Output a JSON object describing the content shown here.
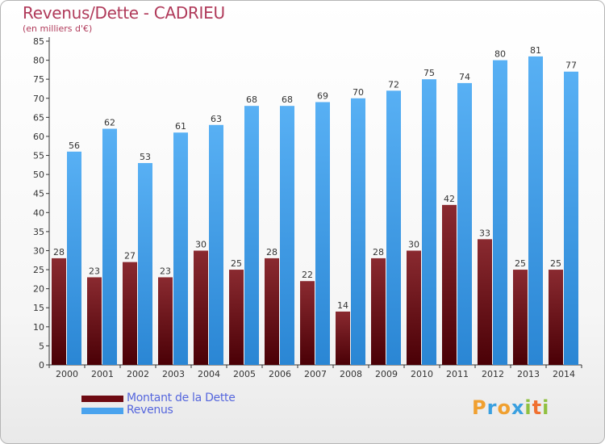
{
  "header": {
    "title": "Revenus/Dette - CADRIEU",
    "subtitle": "(en milliers d'€)"
  },
  "legend": {
    "items": [
      {
        "label": "Montant de la Dette",
        "color": "#6e0a12"
      },
      {
        "label": "Revenus",
        "color": "#4aa3ee"
      }
    ]
  },
  "logo": {
    "text": "Proxiti",
    "letters": [
      {
        "ch": "P",
        "color": "#f0a030"
      },
      {
        "ch": "r",
        "color": "#3aa0e0"
      },
      {
        "ch": "o",
        "color": "#f0a030"
      },
      {
        "ch": "x",
        "color": "#3aa0e0"
      },
      {
        "ch": "i",
        "color": "#90c040"
      },
      {
        "ch": "t",
        "color": "#f07030"
      },
      {
        "ch": "i",
        "color": "#90c040"
      }
    ]
  },
  "chart_data": {
    "type": "bar",
    "title": "Revenus/Dette - CADRIEU",
    "subtitle": "(en milliers d'€)",
    "xlabel": "",
    "ylabel": "",
    "categories": [
      "2000",
      "2001",
      "2002",
      "2003",
      "2004",
      "2005",
      "2006",
      "2007",
      "2008",
      "2009",
      "2010",
      "2011",
      "2012",
      "2013",
      "2014"
    ],
    "series": [
      {
        "name": "Montant de la Dette",
        "color": "#6e0a12",
        "values": [
          28,
          23,
          27,
          23,
          30,
          25,
          28,
          22,
          14,
          28,
          30,
          42,
          33,
          25,
          25
        ]
      },
      {
        "name": "Revenus",
        "color": "#4aa3ee",
        "values": [
          56,
          62,
          53,
          61,
          63,
          68,
          68,
          69,
          70,
          72,
          75,
          74,
          80,
          81,
          77
        ]
      }
    ],
    "ylim": [
      0,
      85
    ],
    "yticks": [
      0,
      5,
      10,
      15,
      20,
      25,
      30,
      35,
      40,
      45,
      50,
      55,
      60,
      65,
      70,
      75,
      80,
      85
    ],
    "grid": false,
    "legend_position": "bottom-left"
  }
}
